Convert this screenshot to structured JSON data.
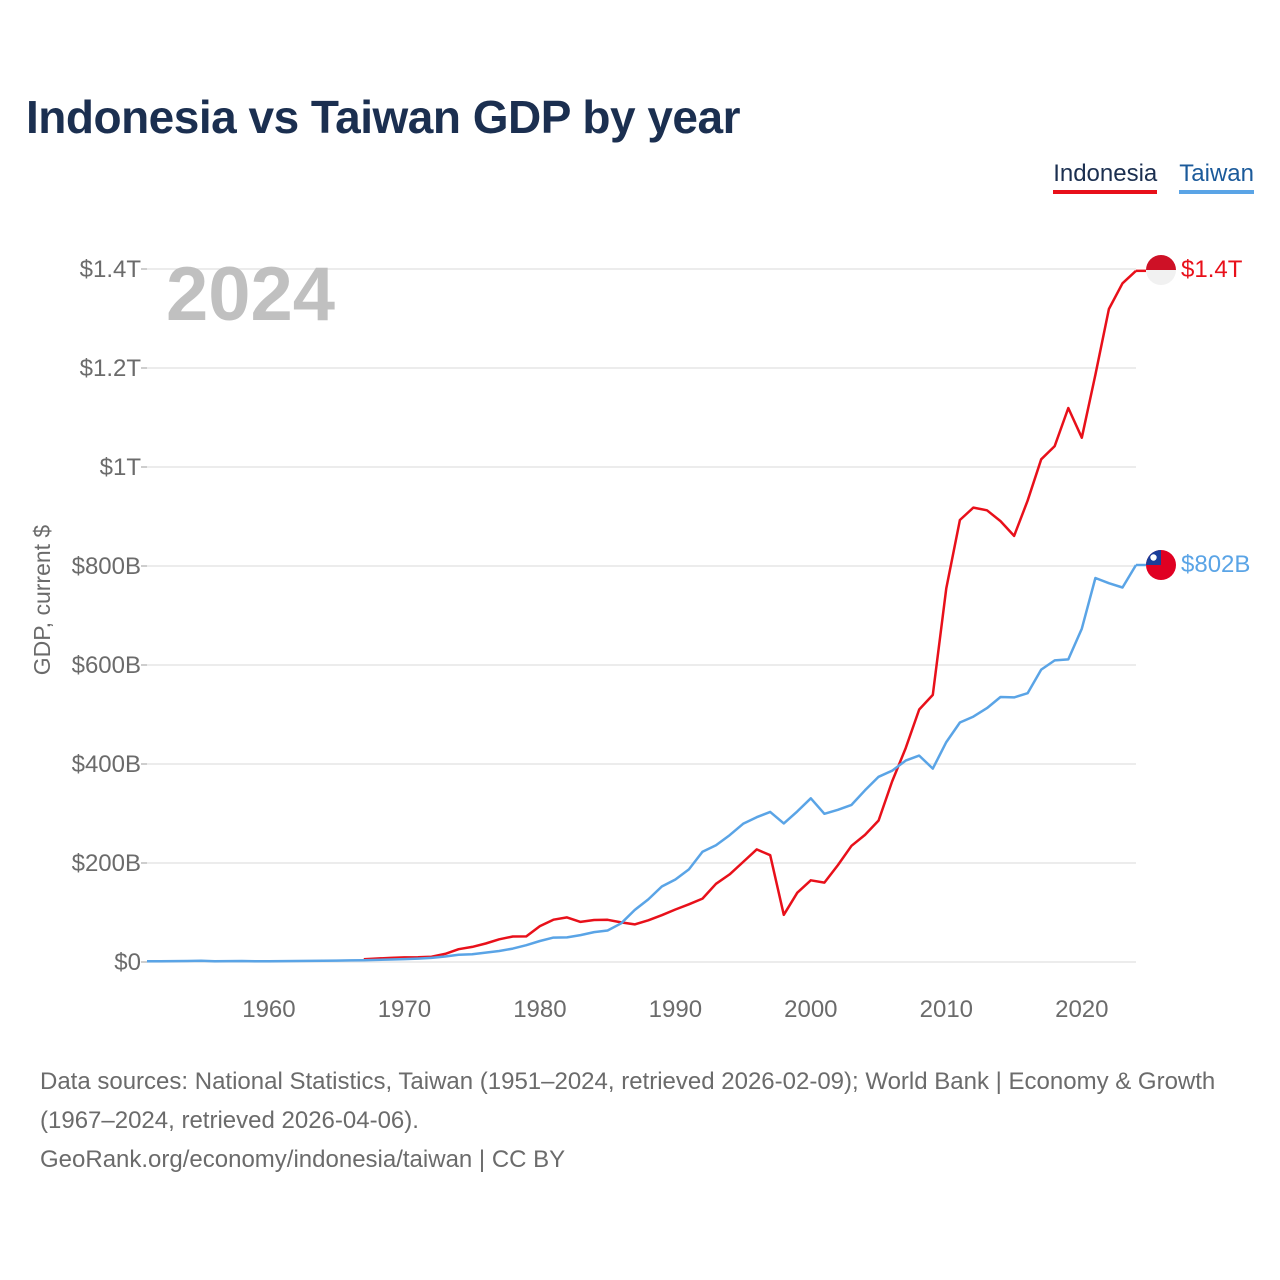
{
  "title": "Indonesia vs Taiwan GDP by year",
  "colors": {
    "indonesia": "#e8101a",
    "taiwan": "#5aa4e6",
    "grid": "#e6e6e6",
    "text": "#6b6b6b",
    "year": "#c0c0c0"
  },
  "chart_data": {
    "type": "line",
    "title": "Indonesia vs Taiwan GDP by year",
    "xlabel": "",
    "ylabel": "GDP, current $",
    "xlim": [
      1951,
      2024
    ],
    "ylim": [
      0,
      1400
    ],
    "value_unit": "billions of current US$",
    "year_label": "2024",
    "x_ticks": [
      1960,
      1970,
      1980,
      1990,
      2000,
      2010,
      2020
    ],
    "x_tick_labels": [
      "1960",
      "1970",
      "1980",
      "1990",
      "2000",
      "2010",
      "2020"
    ],
    "y_ticks": [
      0,
      200,
      400,
      600,
      800,
      1000,
      1200,
      1400
    ],
    "y_tick_labels": [
      "$0",
      "$200B",
      "$400B",
      "$600B",
      "$800B",
      "$1T",
      "$1.2T",
      "$1.4T"
    ],
    "legend": [
      "Indonesia",
      "Taiwan"
    ],
    "legend_position": "top-right",
    "series": [
      {
        "name": "Indonesia",
        "color": "#e8101a",
        "end_label": "$1.4T",
        "points": [
          [
            1967,
            5.7
          ],
          [
            1968,
            7.0
          ],
          [
            1969,
            8.2
          ],
          [
            1970,
            9.2
          ],
          [
            1971,
            9.4
          ],
          [
            1972,
            10.8
          ],
          [
            1973,
            16.3
          ],
          [
            1974,
            25.8
          ],
          [
            1975,
            30.5
          ],
          [
            1976,
            37.3
          ],
          [
            1977,
            45.8
          ],
          [
            1978,
            51.5
          ],
          [
            1979,
            51.8
          ],
          [
            1980,
            72.5
          ],
          [
            1981,
            85.5
          ],
          [
            1982,
            90.2
          ],
          [
            1983,
            81.1
          ],
          [
            1984,
            84.9
          ],
          [
            1985,
            85.3
          ],
          [
            1986,
            80.1
          ],
          [
            1987,
            75.9
          ],
          [
            1988,
            84.3
          ],
          [
            1989,
            94.5
          ],
          [
            1990,
            106.1
          ],
          [
            1991,
            116.6
          ],
          [
            1992,
            128.0
          ],
          [
            1993,
            158.0
          ],
          [
            1994,
            176.9
          ],
          [
            1995,
            202.1
          ],
          [
            1996,
            227.4
          ],
          [
            1997,
            215.7
          ],
          [
            1998,
            95.4
          ],
          [
            1999,
            140.0
          ],
          [
            2000,
            165.0
          ],
          [
            2001,
            160.4
          ],
          [
            2002,
            195.7
          ],
          [
            2003,
            234.8
          ],
          [
            2004,
            256.8
          ],
          [
            2005,
            285.9
          ],
          [
            2006,
            364.6
          ],
          [
            2007,
            432.2
          ],
          [
            2008,
            510.2
          ],
          [
            2009,
            539.6
          ],
          [
            2010,
            755.1
          ],
          [
            2011,
            892.9
          ],
          [
            2012,
            917.9
          ],
          [
            2013,
            912.5
          ],
          [
            2014,
            890.8
          ],
          [
            2015,
            860.9
          ],
          [
            2016,
            931.9
          ],
          [
            2017,
            1015.6
          ],
          [
            2018,
            1042.3
          ],
          [
            2019,
            1119.1
          ],
          [
            2020,
            1059.1
          ],
          [
            2021,
            1186.5
          ],
          [
            2022,
            1319.1
          ],
          [
            2023,
            1371.2
          ],
          [
            2024,
            1396.3
          ]
        ]
      },
      {
        "name": "Taiwan",
        "color": "#5aa4e6",
        "end_label": "$802B",
        "points": [
          [
            1951,
            1.4
          ],
          [
            1952,
            1.7
          ],
          [
            1953,
            1.9
          ],
          [
            1954,
            2.0
          ],
          [
            1955,
            2.4
          ],
          [
            1956,
            1.6
          ],
          [
            1957,
            1.8
          ],
          [
            1958,
            2.1
          ],
          [
            1959,
            1.5
          ],
          [
            1960,
            1.7
          ],
          [
            1961,
            1.8
          ],
          [
            1962,
            2.0
          ],
          [
            1963,
            2.2
          ],
          [
            1964,
            2.6
          ],
          [
            1965,
            2.9
          ],
          [
            1966,
            3.2
          ],
          [
            1967,
            3.7
          ],
          [
            1968,
            4.3
          ],
          [
            1969,
            5.0
          ],
          [
            1970,
            5.8
          ],
          [
            1971,
            6.8
          ],
          [
            1972,
            8.2
          ],
          [
            1973,
            11.1
          ],
          [
            1974,
            14.6
          ],
          [
            1975,
            15.7
          ],
          [
            1976,
            18.9
          ],
          [
            1977,
            22.3
          ],
          [
            1978,
            27.1
          ],
          [
            1979,
            33.9
          ],
          [
            1980,
            42.4
          ],
          [
            1981,
            49.2
          ],
          [
            1982,
            49.6
          ],
          [
            1983,
            54.3
          ],
          [
            1984,
            60.4
          ],
          [
            1985,
            63.7
          ],
          [
            1986,
            78.2
          ],
          [
            1987,
            105.0
          ],
          [
            1988,
            126.5
          ],
          [
            1989,
            152.6
          ],
          [
            1990,
            166.6
          ],
          [
            1991,
            187.1
          ],
          [
            1992,
            222.9
          ],
          [
            1993,
            235.7
          ],
          [
            1994,
            256.2
          ],
          [
            1995,
            279.1
          ],
          [
            1996,
            292.5
          ],
          [
            1997,
            303.3
          ],
          [
            1998,
            280.1
          ],
          [
            1999,
            304.2
          ],
          [
            2000,
            330.7
          ],
          [
            2001,
            299.3
          ],
          [
            2002,
            307.4
          ],
          [
            2003,
            317.4
          ],
          [
            2004,
            346.9
          ],
          [
            2005,
            374.1
          ],
          [
            2006,
            386.5
          ],
          [
            2007,
            406.9
          ],
          [
            2008,
            416.9
          ],
          [
            2009,
            390.8
          ],
          [
            2010,
            444.3
          ],
          [
            2011,
            483.9
          ],
          [
            2012,
            495.8
          ],
          [
            2013,
            512.9
          ],
          [
            2014,
            535.3
          ],
          [
            2015,
            534.5
          ],
          [
            2016,
            543.1
          ],
          [
            2017,
            590.8
          ],
          [
            2018,
            609.3
          ],
          [
            2019,
            611.4
          ],
          [
            2020,
            673.3
          ],
          [
            2021,
            775.8
          ],
          [
            2022,
            765.3
          ],
          [
            2023,
            756.6
          ],
          [
            2024,
            802.0
          ]
        ]
      }
    ]
  },
  "footer": {
    "line1": "Data sources: National Statistics, Taiwan (1951–2024, retrieved 2026-02-09); World Bank | Economy & Growth (1967–2024, retrieved 2026-04-06).",
    "line2": "GeoRank.org/economy/indonesia/taiwan | CC BY"
  }
}
